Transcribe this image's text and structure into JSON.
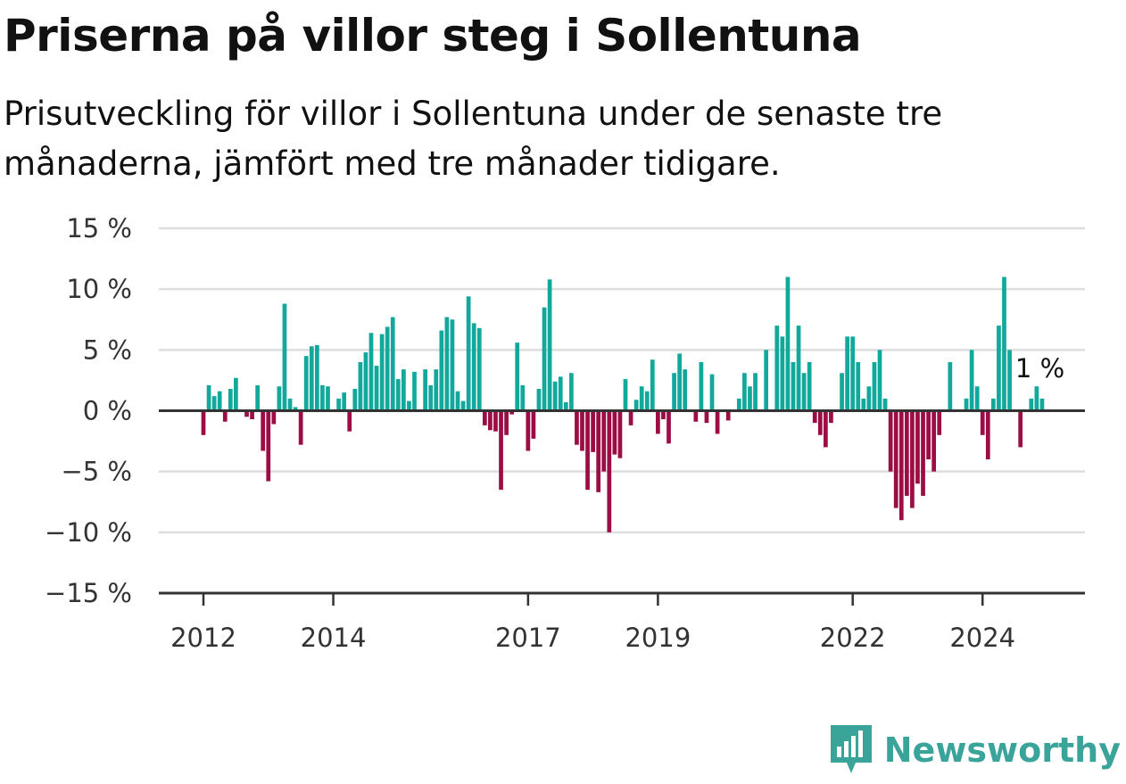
{
  "title": "Priserna på villor steg i Sollentuna",
  "subtitle": "Prisutveckling för villor i Sollentuna under de senaste tre månaderna, jämfört med tre månader tidigare.",
  "brand": {
    "name": "Newsworthy",
    "icon": "newsworthy-logo-icon",
    "color": "#3aa39a"
  },
  "colors": {
    "positive": "#12a89c",
    "negative": "#9c0d46",
    "grid": "#dddddd",
    "axis": "#333333"
  },
  "chart_data": {
    "type": "bar",
    "x_start": "2012-01",
    "x_end": "2025-01",
    "ylim": [
      -15,
      15
    ],
    "yticks": [
      15,
      10,
      5,
      0,
      -5,
      -10,
      -15
    ],
    "ytick_labels": [
      "15 %",
      "10 %",
      "5 %",
      "0 %",
      "−5 %",
      "−10 %",
      "−15 %"
    ],
    "xticks": [
      {
        "date": "2012-01",
        "label": "2012"
      },
      {
        "date": "2014-01",
        "label": "2014"
      },
      {
        "date": "2017-01",
        "label": "2017"
      },
      {
        "date": "2019-01",
        "label": "2019"
      },
      {
        "date": "2022-01",
        "label": "2022"
      },
      {
        "date": "2024-01",
        "label": "2024"
      }
    ],
    "annotation": {
      "date": "2024-12",
      "text": "1 %"
    },
    "series": [
      {
        "x": [
          "2012-01",
          "2012-02",
          "2012-03",
          "2012-04",
          "2012-05",
          "2012-06",
          "2012-07",
          "2012-08",
          "2012-09",
          "2012-10",
          "2012-11",
          "2012-12",
          "2013-01",
          "2013-02",
          "2013-03",
          "2013-04",
          "2013-05",
          "2013-06",
          "2013-07",
          "2013-08",
          "2013-09",
          "2013-10",
          "2013-11",
          "2013-12",
          "2014-01",
          "2014-02",
          "2014-03",
          "2014-04",
          "2014-05",
          "2014-06",
          "2014-07",
          "2014-08",
          "2014-09",
          "2014-10",
          "2014-11",
          "2014-12",
          "2015-01",
          "2015-02",
          "2015-03",
          "2015-04",
          "2015-05",
          "2015-06",
          "2015-07",
          "2015-08",
          "2015-09",
          "2015-10",
          "2015-11",
          "2015-12",
          "2016-01",
          "2016-02",
          "2016-03",
          "2016-04",
          "2016-05",
          "2016-06",
          "2016-07",
          "2016-08",
          "2016-09",
          "2016-10",
          "2016-11",
          "2016-12",
          "2017-01",
          "2017-02",
          "2017-03",
          "2017-04",
          "2017-05",
          "2017-06",
          "2017-07",
          "2017-08",
          "2017-09",
          "2017-10",
          "2017-11",
          "2017-12",
          "2018-01",
          "2018-02",
          "2018-03",
          "2018-04",
          "2018-05",
          "2018-06",
          "2018-07",
          "2018-08",
          "2018-09",
          "2018-10",
          "2018-11",
          "2018-12",
          "2019-01",
          "2019-02",
          "2019-03",
          "2019-04",
          "2019-05",
          "2019-06",
          "2019-07",
          "2019-08",
          "2019-09",
          "2019-10",
          "2019-11",
          "2019-12",
          "2020-01",
          "2020-02",
          "2020-03",
          "2020-04",
          "2020-05",
          "2020-06",
          "2020-07",
          "2020-08",
          "2020-09",
          "2020-10",
          "2020-11",
          "2020-12",
          "2021-01",
          "2021-02",
          "2021-03",
          "2021-04",
          "2021-05",
          "2021-06",
          "2021-07",
          "2021-08",
          "2021-09",
          "2021-10",
          "2021-11",
          "2021-12",
          "2022-01",
          "2022-02",
          "2022-03",
          "2022-04",
          "2022-05",
          "2022-06",
          "2022-07",
          "2022-08",
          "2022-09",
          "2022-10",
          "2022-11",
          "2022-12",
          "2023-01",
          "2023-02",
          "2023-03",
          "2023-04",
          "2023-05",
          "2023-06",
          "2023-07",
          "2023-08",
          "2023-09",
          "2023-10",
          "2023-11",
          "2023-12",
          "2024-01",
          "2024-02",
          "2024-03",
          "2024-04",
          "2024-05",
          "2024-06",
          "2024-07",
          "2024-08",
          "2024-09",
          "2024-10",
          "2024-11",
          "2024-12"
        ],
        "values": [
          -2.0,
          2.1,
          1.2,
          1.6,
          -0.9,
          1.8,
          2.7,
          0,
          -0.5,
          -0.7,
          2.1,
          -3.3,
          -5.8,
          -1.1,
          2.0,
          8.8,
          1.0,
          0.3,
          -2.8,
          4.5,
          5.3,
          5.4,
          2.1,
          2.0,
          0,
          1.0,
          1.5,
          -1.7,
          1.8,
          4.0,
          4.8,
          6.4,
          3.7,
          6.3,
          6.9,
          7.7,
          2.6,
          3.4,
          0.8,
          3.2,
          0,
          3.4,
          2.1,
          3.4,
          6.6,
          7.7,
          7.5,
          1.6,
          0.8,
          9.4,
          7.2,
          6.8,
          -1.2,
          -1.6,
          -1.7,
          -6.5,
          -2.0,
          -0.3,
          5.6,
          2.1,
          -3.3,
          -2.3,
          1.8,
          8.5,
          10.8,
          2.4,
          2.8,
          0.7,
          3.1,
          -2.8,
          -3.3,
          -6.5,
          -3.4,
          -6.7,
          -5.0,
          -10.0,
          -3.6,
          -3.9,
          2.6,
          -1.2,
          0.9,
          2.0,
          1.6,
          4.2,
          -1.9,
          -0.7,
          -2.7,
          3.1,
          4.7,
          3.4,
          0,
          -0.9,
          4.0,
          -1.0,
          3.0,
          -1.9,
          0,
          -0.8,
          0,
          1.0,
          3.1,
          2.0,
          3.1,
          0,
          5.0,
          0,
          7.0,
          6.1,
          11.0,
          4.0,
          7.0,
          3.1,
          4.0,
          -1.0,
          -2.0,
          -3.0,
          -1.0,
          0,
          3.1,
          6.1,
          6.1,
          4.0,
          1.0,
          2.0,
          4.0,
          5.0,
          1.0,
          -5.0,
          -8.0,
          -9.0,
          -7.0,
          -8.0,
          -6.0,
          -7.0,
          -4.0,
          -5.0,
          -2.0,
          0,
          4.0,
          0,
          0,
          1.0,
          5.0,
          2.0,
          -2.0,
          -4.0,
          1.0,
          7.0,
          11.0,
          5.0,
          0,
          -3.0,
          0,
          1.0,
          2.0,
          1.0
        ]
      }
    ]
  }
}
